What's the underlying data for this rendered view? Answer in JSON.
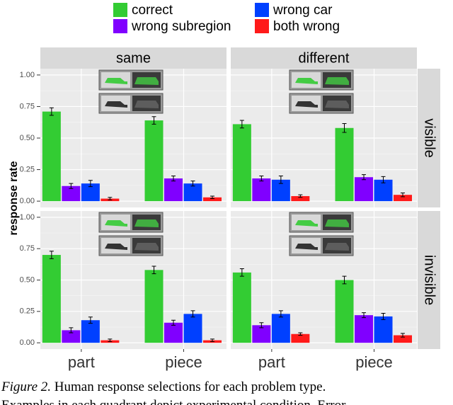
{
  "chart_data": {
    "type": "bar",
    "ylabel": "response rate",
    "categories": [
      "part",
      "piece"
    ],
    "columns": [
      "same",
      "different"
    ],
    "series": [
      {
        "name": "correct",
        "color": "#33cc33"
      },
      {
        "name": "wrong subregion",
        "color": "#8000ff"
      },
      {
        "name": "wrong car",
        "color": "#0040ff"
      },
      {
        "name": "both wrong",
        "color": "#ff1a1a"
      }
    ],
    "ylim": [
      -0.05,
      1.05
    ],
    "yticks": [
      {
        "value": 0,
        "label": "0.00"
      },
      {
        "value": 0.25,
        "label": "0.25"
      },
      {
        "value": 0.5,
        "label": "0.50"
      },
      {
        "value": 0.75,
        "label": "0.75"
      },
      {
        "value": 1,
        "label": "1.00"
      }
    ],
    "grid": true,
    "rows": [
      {
        "label": "visible",
        "panels": [
          {
            "series": [
              {
                "values": [
                  0.71,
                  0.64
                ],
                "errors": [
                  0.03,
                  0.03
                ]
              },
              {
                "values": [
                  0.12,
                  0.18
                ],
                "errors": [
                  0.02,
                  0.02
                ]
              },
              {
                "values": [
                  0.14,
                  0.14
                ],
                "errors": [
                  0.025,
                  0.02
                ]
              },
              {
                "values": [
                  0.02,
                  0.03
                ],
                "errors": [
                  0.01,
                  0.01
                ]
              }
            ]
          },
          {
            "series": [
              {
                "values": [
                  0.61,
                  0.58
                ],
                "errors": [
                  0.03,
                  0.035
                ]
              },
              {
                "values": [
                  0.18,
                  0.19
                ],
                "errors": [
                  0.02,
                  0.02
                ]
              },
              {
                "values": [
                  0.17,
                  0.17
                ],
                "errors": [
                  0.03,
                  0.025
                ]
              },
              {
                "values": [
                  0.04,
                  0.05
                ],
                "errors": [
                  0.01,
                  0.015
                ]
              }
            ]
          }
        ]
      },
      {
        "label": "invisible",
        "panels": [
          {
            "series": [
              {
                "values": [
                  0.7,
                  0.58
                ],
                "errors": [
                  0.03,
                  0.03
                ]
              },
              {
                "values": [
                  0.1,
                  0.16
                ],
                "errors": [
                  0.02,
                  0.02
                ]
              },
              {
                "values": [
                  0.18,
                  0.23
                ],
                "errors": [
                  0.025,
                  0.025
                ]
              },
              {
                "values": [
                  0.02,
                  0.02
                ],
                "errors": [
                  0.01,
                  0.01
                ]
              }
            ]
          },
          {
            "series": [
              {
                "values": [
                  0.56,
                  0.5
                ],
                "errors": [
                  0.03,
                  0.03
                ]
              },
              {
                "values": [
                  0.14,
                  0.22
                ],
                "errors": [
                  0.02,
                  0.02
                ]
              },
              {
                "values": [
                  0.23,
                  0.21
                ],
                "errors": [
                  0.025,
                  0.025
                ]
              },
              {
                "values": [
                  0.07,
                  0.06
                ],
                "errors": [
                  0.01,
                  0.015
                ]
              }
            ]
          }
        ]
      }
    ]
  },
  "caption": {
    "label": "Figure 2.",
    "line1": " Human response selections for each problem type.",
    "line2": "Examples in each quadrant depict experimental condition. Error"
  }
}
